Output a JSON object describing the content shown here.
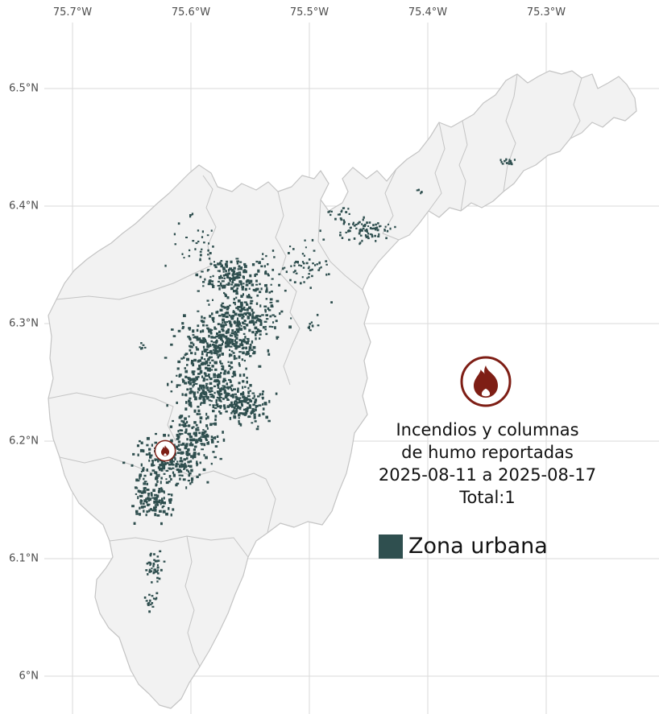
{
  "axes": {
    "top_labels": [
      "75.7°W",
      "75.6°W",
      "75.5°W",
      "75.4°W",
      "75.3°W"
    ],
    "left_labels": [
      "6.5°N",
      "6.4°N",
      "6.3°N",
      "6.2°N",
      "6.1°N",
      "6°N"
    ]
  },
  "annotation": {
    "line1": "Incendios y columnas",
    "line2": "de humo reportadas",
    "line3": "2025-08-11 a 2025-08-17",
    "line4": "Total:1"
  },
  "legend": {
    "label": "Zona urbana"
  },
  "colors": {
    "urban": "#2f4f4f",
    "fire": "#7e1e15",
    "land": "#f2f2f2",
    "border": "#c4c4c4",
    "grid": "#dadada",
    "axis_text": "#4d4d4d"
  },
  "map": {
    "urban_clusters": [
      [
        290,
        345,
        40,
        22,
        160,
        2,
        4
      ],
      [
        300,
        395,
        45,
        28,
        220,
        2,
        4
      ],
      [
        272,
        430,
        50,
        30,
        260,
        2,
        4
      ],
      [
        262,
        482,
        42,
        32,
        260,
        2,
        4
      ],
      [
        305,
        505,
        30,
        25,
        140,
        2,
        4
      ],
      [
        240,
        540,
        35,
        20,
        120,
        2,
        4
      ],
      [
        215,
        575,
        45,
        25,
        220,
        2,
        4
      ],
      [
        190,
        622,
        22,
        25,
        110,
        2,
        4
      ],
      [
        192,
        705,
        10,
        20,
        45,
        2,
        3
      ],
      [
        190,
        745,
        8,
        12,
        18,
        2,
        3
      ],
      [
        455,
        285,
        32,
        14,
        80,
        2,
        3
      ],
      [
        420,
        265,
        15,
        8,
        18,
        2,
        3
      ],
      [
        630,
        200,
        9,
        5,
        14,
        2,
        3
      ],
      [
        520,
        238,
        4,
        3,
        5,
        2,
        3
      ],
      [
        380,
        330,
        25,
        18,
        35,
        2,
        3
      ],
      [
        350,
        340,
        60,
        60,
        50,
        2,
        3
      ],
      [
        240,
        300,
        30,
        25,
        30,
        2,
        3
      ],
      [
        178,
        430,
        5,
        5,
        6,
        2,
        3
      ],
      [
        237,
        268,
        3,
        3,
        4,
        2,
        3
      ],
      [
        385,
        405,
        6,
        5,
        8,
        2,
        3
      ]
    ]
  }
}
